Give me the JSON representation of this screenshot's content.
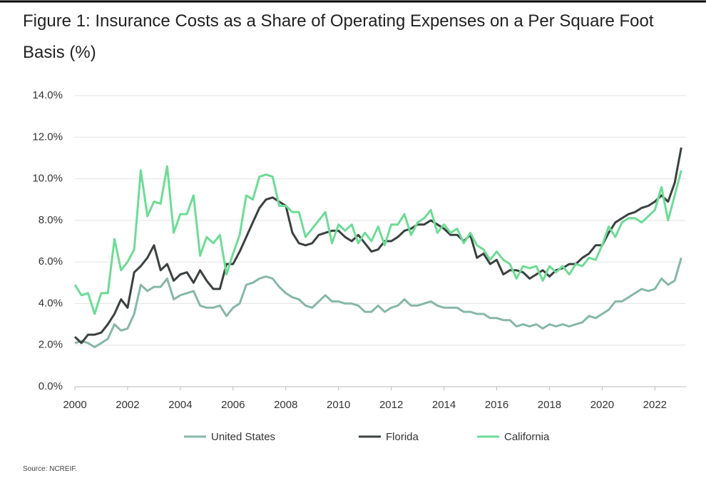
{
  "chart_data": {
    "type": "line",
    "title": "Figure 1: Insurance Costs as a Share of Operating Expenses on a Per Square Foot Basis (%)",
    "source": "Source: NCREIF.",
    "x": [
      2000,
      2000.25,
      2000.5,
      2000.75,
      2001,
      2001.25,
      2001.5,
      2001.75,
      2002,
      2002.25,
      2002.5,
      2002.75,
      2003,
      2003.25,
      2003.5,
      2003.75,
      2004,
      2004.25,
      2004.5,
      2004.75,
      2005,
      2005.25,
      2005.5,
      2005.75,
      2006,
      2006.25,
      2006.5,
      2006.75,
      2007,
      2007.25,
      2007.5,
      2007.75,
      2008,
      2008.25,
      2008.5,
      2008.75,
      2009,
      2009.25,
      2009.5,
      2009.75,
      2010,
      2010.25,
      2010.5,
      2010.75,
      2011,
      2011.25,
      2011.5,
      2011.75,
      2012,
      2012.25,
      2012.5,
      2012.75,
      2013,
      2013.25,
      2013.5,
      2013.75,
      2014,
      2014.25,
      2014.5,
      2014.75,
      2015,
      2015.25,
      2015.5,
      2015.75,
      2016,
      2016.25,
      2016.5,
      2016.75,
      2017,
      2017.25,
      2017.5,
      2017.75,
      2018,
      2018.25,
      2018.5,
      2018.75,
      2019,
      2019.25,
      2019.5,
      2019.75,
      2020,
      2020.25,
      2020.5,
      2020.75,
      2021,
      2021.25,
      2021.5,
      2021.75,
      2022,
      2022.25,
      2022.5,
      2022.75,
      2023
    ],
    "series": [
      {
        "name": "United States",
        "color": "#86b8a6",
        "values": [
          2.1,
          2.2,
          2.1,
          1.9,
          2.1,
          2.3,
          3.0,
          2.7,
          2.8,
          3.5,
          4.9,
          4.6,
          4.8,
          4.8,
          5.2,
          4.2,
          4.4,
          4.5,
          4.6,
          3.9,
          3.8,
          3.8,
          3.9,
          3.4,
          3.8,
          4.0,
          4.9,
          5.0,
          5.2,
          5.3,
          5.2,
          4.8,
          4.5,
          4.3,
          4.2,
          3.9,
          3.8,
          4.1,
          4.4,
          4.1,
          4.1,
          4.0,
          4.0,
          3.9,
          3.6,
          3.6,
          3.9,
          3.6,
          3.8,
          3.9,
          4.2,
          3.9,
          3.9,
          4.0,
          4.1,
          3.9,
          3.8,
          3.8,
          3.8,
          3.6,
          3.6,
          3.5,
          3.5,
          3.3,
          3.3,
          3.2,
          3.2,
          2.9,
          3.0,
          2.9,
          3.0,
          2.8,
          3.0,
          2.9,
          3.0,
          2.9,
          3.0,
          3.1,
          3.4,
          3.3,
          3.5,
          3.7,
          4.1,
          4.1,
          4.3,
          4.5,
          4.7,
          4.6,
          4.7,
          5.2,
          4.9,
          5.1,
          6.2
        ]
      },
      {
        "name": "Florida",
        "color": "#3b4040",
        "values": [
          2.4,
          2.1,
          2.5,
          2.5,
          2.6,
          3.0,
          3.5,
          4.2,
          3.8,
          5.5,
          5.8,
          6.2,
          6.8,
          5.6,
          5.9,
          5.1,
          5.4,
          5.5,
          5.0,
          5.6,
          5.1,
          4.7,
          4.7,
          5.9,
          5.9,
          6.5,
          7.2,
          7.9,
          8.6,
          9.0,
          9.1,
          8.9,
          8.7,
          7.4,
          6.9,
          6.8,
          6.9,
          7.3,
          7.4,
          7.5,
          7.5,
          7.2,
          7.0,
          7.3,
          6.9,
          6.5,
          6.6,
          7.0,
          7.0,
          7.2,
          7.5,
          7.6,
          7.8,
          7.8,
          8.0,
          7.8,
          7.6,
          7.3,
          7.3,
          7.0,
          7.3,
          6.2,
          6.4,
          5.9,
          6.1,
          5.4,
          5.6,
          5.6,
          5.5,
          5.2,
          5.4,
          5.6,
          5.3,
          5.6,
          5.7,
          5.9,
          5.9,
          6.2,
          6.4,
          6.8,
          6.8,
          7.4,
          7.9,
          8.1,
          8.3,
          8.4,
          8.6,
          8.7,
          8.9,
          9.2,
          8.9,
          9.8,
          11.5
        ]
      },
      {
        "name": "California",
        "color": "#6ddc95",
        "values": [
          4.9,
          4.4,
          4.5,
          3.5,
          4.5,
          4.5,
          7.1,
          5.6,
          6.0,
          6.6,
          10.4,
          8.2,
          8.9,
          8.8,
          10.6,
          7.4,
          8.3,
          8.3,
          9.2,
          6.3,
          7.2,
          6.9,
          7.3,
          5.4,
          6.4,
          7.3,
          9.2,
          9.0,
          10.1,
          10.2,
          10.1,
          8.7,
          8.7,
          8.4,
          8.4,
          7.2,
          7.6,
          8.0,
          8.4,
          6.9,
          7.8,
          7.5,
          7.8,
          6.9,
          7.4,
          7.0,
          7.7,
          6.8,
          7.8,
          7.8,
          8.3,
          7.3,
          7.9,
          8.1,
          8.5,
          7.4,
          7.8,
          7.4,
          7.6,
          6.9,
          7.4,
          6.8,
          6.6,
          6.1,
          6.5,
          6.1,
          5.9,
          5.2,
          5.8,
          5.7,
          5.8,
          5.1,
          5.8,
          5.5,
          5.8,
          5.4,
          5.9,
          5.8,
          6.2,
          6.1,
          6.8,
          7.7,
          7.2,
          7.9,
          8.1,
          8.1,
          7.9,
          8.2,
          8.5,
          9.6,
          8.0,
          9.2,
          10.4
        ]
      }
    ],
    "xlim": [
      2000,
      2023.1
    ],
    "xticks": [
      2000,
      2002,
      2004,
      2006,
      2008,
      2010,
      2012,
      2014,
      2016,
      2018,
      2020,
      2022
    ],
    "ylim": [
      0,
      14
    ],
    "yticks": [
      {
        "value": 0,
        "label": "0.0%"
      },
      {
        "value": 2,
        "label": "2.0%"
      },
      {
        "value": 4,
        "label": "4.0%"
      },
      {
        "value": 6,
        "label": "6.0%"
      },
      {
        "value": 8,
        "label": "8.0%"
      },
      {
        "value": 10,
        "label": "10.0%"
      },
      {
        "value": 12,
        "label": "12.0%"
      },
      {
        "value": 14,
        "label": "14.0%"
      }
    ],
    "grid": true
  }
}
